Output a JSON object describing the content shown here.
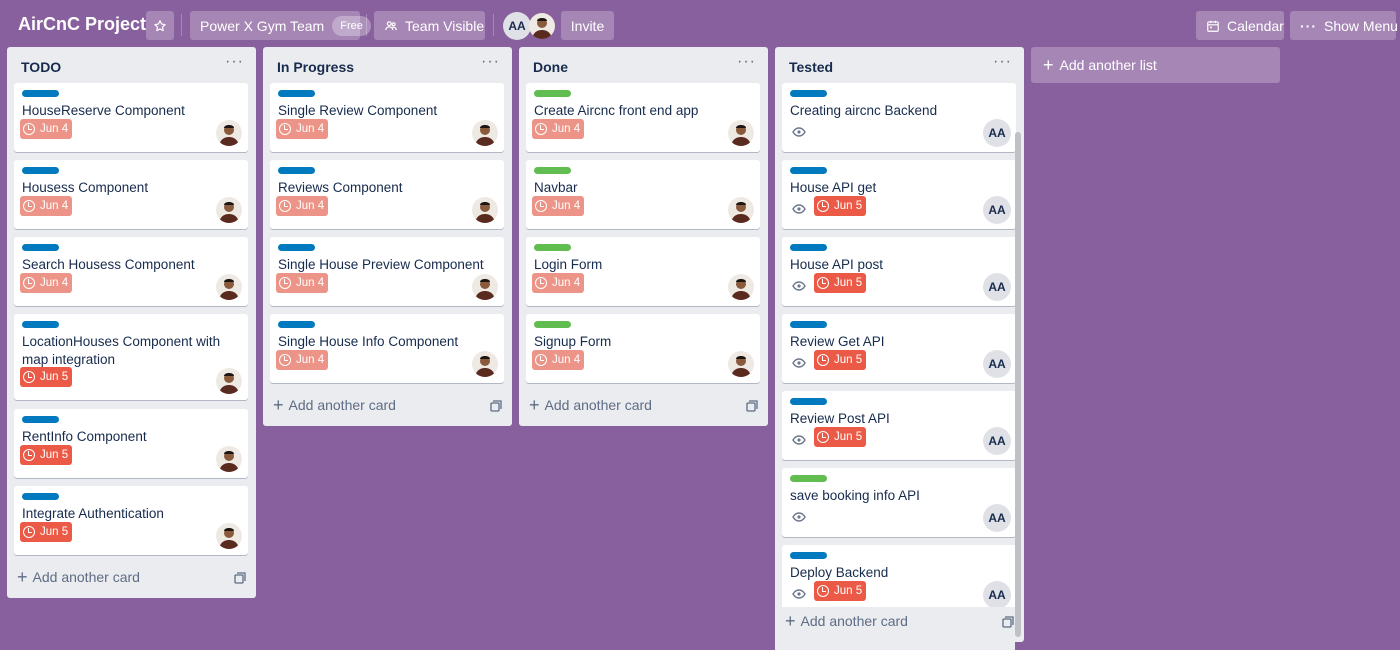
{
  "header": {
    "title": "AirCnC Project",
    "team_name": "Power X Gym Team",
    "team_badge": "Free",
    "visibility": "Team Visible",
    "member_initials": "AA",
    "invite": "Invite",
    "calendar": "Calendar",
    "show_menu": "Show Menu"
  },
  "add_another_card": "Add another card",
  "add_another_list": "Add another list",
  "lists": [
    {
      "title": "TODO",
      "cards": [
        {
          "title": "HouseReserve Component",
          "label_color": "#0079bf",
          "due": "Jun 4",
          "due_status": "soon",
          "watched": false,
          "member": "photo"
        },
        {
          "title": "Housess Component",
          "label_color": "#0079bf",
          "due": "Jun 4",
          "due_status": "soon",
          "watched": false,
          "member": "photo"
        },
        {
          "title": "Search Housess Component",
          "label_color": "#0079bf",
          "due": "Jun 4",
          "due_status": "soon",
          "watched": false,
          "member": "photo"
        },
        {
          "title": "LocationHouses Component with map integration",
          "label_color": "#0079bf",
          "due": "Jun 5",
          "due_status": "past",
          "watched": false,
          "member": "photo"
        },
        {
          "title": "RentInfo Component",
          "label_color": "#0079bf",
          "due": "Jun 5",
          "due_status": "past",
          "watched": false,
          "member": "photo"
        },
        {
          "title": "Integrate Authentication",
          "label_color": "#0079bf",
          "due": "Jun 5",
          "due_status": "past",
          "watched": false,
          "member": "photo"
        }
      ]
    },
    {
      "title": "In Progress",
      "cards": [
        {
          "title": "Single Review Component",
          "label_color": "#0079bf",
          "due": "Jun 4",
          "due_status": "soon",
          "watched": false,
          "member": "photo"
        },
        {
          "title": "Reviews Component",
          "label_color": "#0079bf",
          "due": "Jun 4",
          "due_status": "soon",
          "watched": false,
          "member": "photo"
        },
        {
          "title": "Single House Preview Component",
          "label_color": "#0079bf",
          "due": "Jun 4",
          "due_status": "soon",
          "watched": false,
          "member": "photo"
        },
        {
          "title": "Single House Info Component",
          "label_color": "#0079bf",
          "due": "Jun 4",
          "due_status": "soon",
          "watched": false,
          "member": "photo"
        }
      ]
    },
    {
      "title": "Done",
      "cards": [
        {
          "title": "Create Aircnc front end app",
          "label_color": "#61bd4f",
          "due": "Jun 4",
          "due_status": "soon",
          "watched": false,
          "member": "photo"
        },
        {
          "title": "Navbar",
          "label_color": "#61bd4f",
          "due": "Jun 4",
          "due_status": "soon",
          "watched": false,
          "member": "photo"
        },
        {
          "title": "Login Form",
          "label_color": "#61bd4f",
          "due": "Jun 4",
          "due_status": "soon",
          "watched": false,
          "member": "photo"
        },
        {
          "title": "Signup Form",
          "label_color": "#61bd4f",
          "due": "Jun 4",
          "due_status": "soon",
          "watched": false,
          "member": "photo"
        }
      ]
    },
    {
      "title": "Tested",
      "cards": [
        {
          "title": "Creating aircnc Backend",
          "label_color": "#0079bf",
          "due": "",
          "due_status": "",
          "watched": true,
          "member": "AA"
        },
        {
          "title": "House API get",
          "label_color": "#0079bf",
          "due": "Jun 5",
          "due_status": "past",
          "watched": true,
          "member": "AA"
        },
        {
          "title": "House API post",
          "label_color": "#0079bf",
          "due": "Jun 5",
          "due_status": "past",
          "watched": true,
          "member": "AA"
        },
        {
          "title": "Review Get API",
          "label_color": "#0079bf",
          "due": "Jun 5",
          "due_status": "past",
          "watched": true,
          "member": "AA"
        },
        {
          "title": "Review Post API",
          "label_color": "#0079bf",
          "due": "Jun 5",
          "due_status": "past",
          "watched": true,
          "member": "AA"
        },
        {
          "title": "save booking info API",
          "label_color": "#61bd4f",
          "due": "",
          "due_status": "",
          "watched": true,
          "member": "AA"
        },
        {
          "title": "Deploy Backend",
          "label_color": "#0079bf",
          "due": "Jun 5",
          "due_status": "past",
          "watched": true,
          "member": "AA"
        }
      ]
    }
  ]
}
